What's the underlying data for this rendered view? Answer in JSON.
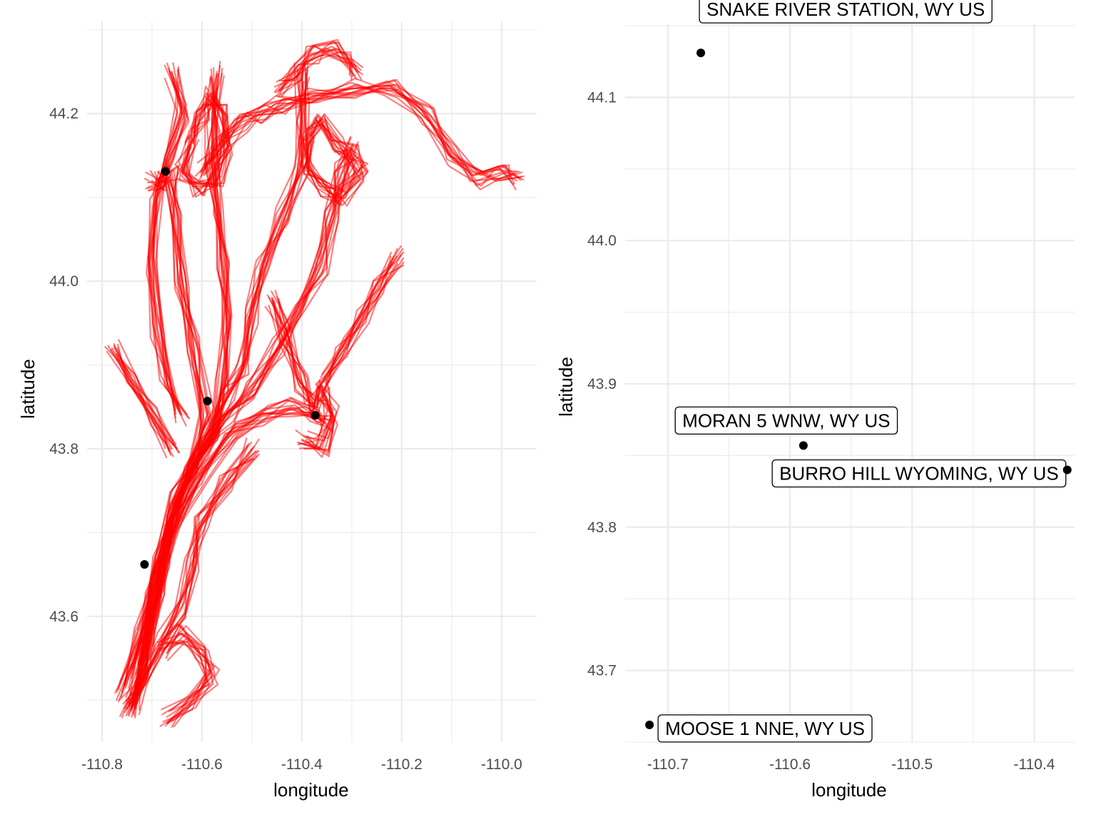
{
  "colors": {
    "track": "#ff0000",
    "point": "#000000",
    "grid": "#ebebeb",
    "tick_text": "#4d4d4d"
  },
  "chart_data": [
    {
      "type": "line",
      "xlabel": "longitude",
      "ylabel": "latitude",
      "xlim": [
        -110.83,
        -109.93
      ],
      "ylim": [
        43.45,
        44.31
      ],
      "xticks": [
        -110.8,
        -110.6,
        -110.4,
        -110.2,
        -110.0
      ],
      "xtick_labels": [
        "-110.8",
        "-110.6",
        "-110.4",
        "-110.2",
        "-110.0"
      ],
      "yticks": [
        43.6,
        43.8,
        44.0,
        44.2
      ],
      "ytick_labels": [
        "43.6",
        "43.8",
        "44.0",
        "44.2"
      ],
      "grid": true,
      "track_color": "#ff0000",
      "track_opacity": 0.5,
      "track_note": "dense GPS movement tracks (many overlapping semi-transparent red paths); approximate representative paths listed",
      "tracks": [
        [
          [
            -110.75,
            43.49
          ],
          [
            -110.72,
            43.53
          ],
          [
            -110.7,
            43.6
          ],
          [
            -110.68,
            43.67
          ],
          [
            -110.66,
            43.73
          ],
          [
            -110.62,
            43.78
          ],
          [
            -110.58,
            43.82
          ],
          [
            -110.55,
            43.86
          ],
          [
            -110.52,
            43.9
          ],
          [
            -110.5,
            43.96
          ],
          [
            -110.48,
            44.02
          ],
          [
            -110.44,
            44.08
          ],
          [
            -110.4,
            44.14
          ],
          [
            -110.4,
            44.2
          ],
          [
            -110.4,
            44.25
          ]
        ],
        [
          [
            -110.74,
            43.5
          ],
          [
            -110.71,
            43.56
          ],
          [
            -110.69,
            43.64
          ],
          [
            -110.66,
            43.71
          ],
          [
            -110.62,
            43.77
          ],
          [
            -110.58,
            43.82
          ],
          [
            -110.56,
            43.88
          ],
          [
            -110.55,
            43.95
          ],
          [
            -110.56,
            44.02
          ],
          [
            -110.57,
            44.08
          ],
          [
            -110.58,
            44.14
          ],
          [
            -110.58,
            44.2
          ],
          [
            -110.57,
            44.25
          ]
        ],
        [
          [
            -110.76,
            43.51
          ],
          [
            -110.72,
            43.58
          ],
          [
            -110.69,
            43.66
          ],
          [
            -110.65,
            43.74
          ],
          [
            -110.6,
            43.8
          ],
          [
            -110.55,
            43.84
          ],
          [
            -110.5,
            43.87
          ],
          [
            -110.45,
            43.92
          ],
          [
            -110.4,
            43.97
          ],
          [
            -110.36,
            44.02
          ],
          [
            -110.34,
            44.08
          ],
          [
            -110.32,
            44.13
          ],
          [
            -110.3,
            44.16
          ]
        ],
        [
          [
            -110.73,
            43.53
          ],
          [
            -110.7,
            43.62
          ],
          [
            -110.66,
            43.7
          ],
          [
            -110.6,
            43.77
          ],
          [
            -110.54,
            43.82
          ],
          [
            -110.48,
            43.84
          ],
          [
            -110.42,
            43.85
          ],
          [
            -110.38,
            43.84
          ],
          [
            -110.35,
            43.83
          ]
        ],
        [
          [
            -110.72,
            43.55
          ],
          [
            -110.69,
            43.63
          ],
          [
            -110.66,
            43.72
          ],
          [
            -110.62,
            43.78
          ],
          [
            -110.59,
            43.84
          ],
          [
            -110.62,
            43.92
          ],
          [
            -110.64,
            44.0
          ],
          [
            -110.65,
            44.08
          ],
          [
            -110.66,
            44.13
          ],
          [
            -110.68,
            44.11
          ],
          [
            -110.7,
            44.12
          ]
        ],
        [
          [
            -110.6,
            44.13
          ],
          [
            -110.56,
            44.16
          ],
          [
            -110.52,
            44.19
          ],
          [
            -110.48,
            44.2
          ],
          [
            -110.44,
            44.21
          ],
          [
            -110.38,
            44.22
          ],
          [
            -110.3,
            44.23
          ],
          [
            -110.22,
            44.23
          ],
          [
            -110.15,
            44.2
          ],
          [
            -110.1,
            44.15
          ],
          [
            -110.05,
            44.12
          ],
          [
            -110.0,
            44.13
          ],
          [
            -109.97,
            44.12
          ]
        ],
        [
          [
            -110.44,
            44.23
          ],
          [
            -110.41,
            44.25
          ],
          [
            -110.38,
            44.27
          ],
          [
            -110.34,
            44.28
          ],
          [
            -110.31,
            44.27
          ],
          [
            -110.29,
            44.25
          ]
        ],
        [
          [
            -110.62,
            44.17
          ],
          [
            -110.6,
            44.2
          ],
          [
            -110.58,
            44.22
          ],
          [
            -110.56,
            44.2
          ],
          [
            -110.55,
            44.16
          ],
          [
            -110.57,
            44.12
          ],
          [
            -110.61,
            44.11
          ],
          [
            -110.64,
            44.13
          ],
          [
            -110.62,
            44.17
          ]
        ],
        [
          [
            -110.39,
            44.17
          ],
          [
            -110.36,
            44.19
          ],
          [
            -110.33,
            44.16
          ],
          [
            -110.3,
            44.15
          ],
          [
            -110.28,
            44.13
          ],
          [
            -110.32,
            44.1
          ],
          [
            -110.36,
            44.11
          ],
          [
            -110.39,
            44.14
          ],
          [
            -110.39,
            44.17
          ]
        ],
        [
          [
            -110.78,
            43.92
          ],
          [
            -110.74,
            43.88
          ],
          [
            -110.7,
            43.84
          ],
          [
            -110.66,
            43.8
          ]
        ],
        [
          [
            -110.36,
            43.88
          ],
          [
            -110.32,
            43.92
          ],
          [
            -110.28,
            43.96
          ],
          [
            -110.25,
            43.99
          ],
          [
            -110.21,
            44.03
          ]
        ],
        [
          [
            -110.74,
            43.49
          ],
          [
            -110.72,
            43.52
          ],
          [
            -110.68,
            43.57
          ],
          [
            -110.64,
            43.61
          ],
          [
            -110.62,
            43.66
          ],
          [
            -110.6,
            43.71
          ],
          [
            -110.55,
            43.76
          ],
          [
            -110.5,
            43.8
          ]
        ],
        [
          [
            -110.68,
            43.56
          ],
          [
            -110.64,
            43.58
          ],
          [
            -110.6,
            43.56
          ],
          [
            -110.58,
            43.53
          ],
          [
            -110.62,
            43.5
          ],
          [
            -110.67,
            43.48
          ]
        ],
        [
          [
            -110.66,
            44.25
          ],
          [
            -110.64,
            44.2
          ],
          [
            -110.66,
            44.15
          ],
          [
            -110.69,
            44.1
          ],
          [
            -110.7,
            44.02
          ],
          [
            -110.69,
            43.94
          ],
          [
            -110.67,
            43.88
          ],
          [
            -110.64,
            43.84
          ]
        ],
        [
          [
            -110.46,
            43.98
          ],
          [
            -110.43,
            43.93
          ],
          [
            -110.4,
            43.88
          ],
          [
            -110.38,
            43.85
          ],
          [
            -110.36,
            43.87
          ],
          [
            -110.34,
            43.84
          ],
          [
            -110.36,
            43.8
          ],
          [
            -110.4,
            43.81
          ]
        ]
      ],
      "points": [
        {
          "x": -110.673,
          "y": 44.131
        },
        {
          "x": -110.589,
          "y": 43.857
        },
        {
          "x": -110.373,
          "y": 43.84
        },
        {
          "x": -110.715,
          "y": 43.662
        }
      ]
    },
    {
      "type": "scatter",
      "xlabel": "longitude",
      "ylabel": "latitude",
      "xlim": [
        -110.735,
        -110.367
      ],
      "ylim": [
        43.65,
        44.151
      ],
      "xticks": [
        -110.7,
        -110.6,
        -110.5,
        -110.4
      ],
      "xtick_labels": [
        "-110.7",
        "-110.6",
        "-110.5",
        "-110.4"
      ],
      "yticks": [
        43.7,
        43.8,
        43.9,
        44.0,
        44.1
      ],
      "ytick_labels": [
        "43.7",
        "43.8",
        "43.9",
        "44.0",
        "44.1"
      ],
      "grid": true,
      "points": [
        {
          "x": -110.673,
          "y": 44.131,
          "label": "SNAKE RIVER STATION, WY US"
        },
        {
          "x": -110.589,
          "y": 43.857,
          "label": "MORAN 5 WNW, WY US"
        },
        {
          "x": -110.373,
          "y": 43.84,
          "label": "BURRO HILL WYOMING, WY US"
        },
        {
          "x": -110.715,
          "y": 43.662,
          "label": "MOOSE 1 NNE, WY US"
        }
      ]
    }
  ]
}
